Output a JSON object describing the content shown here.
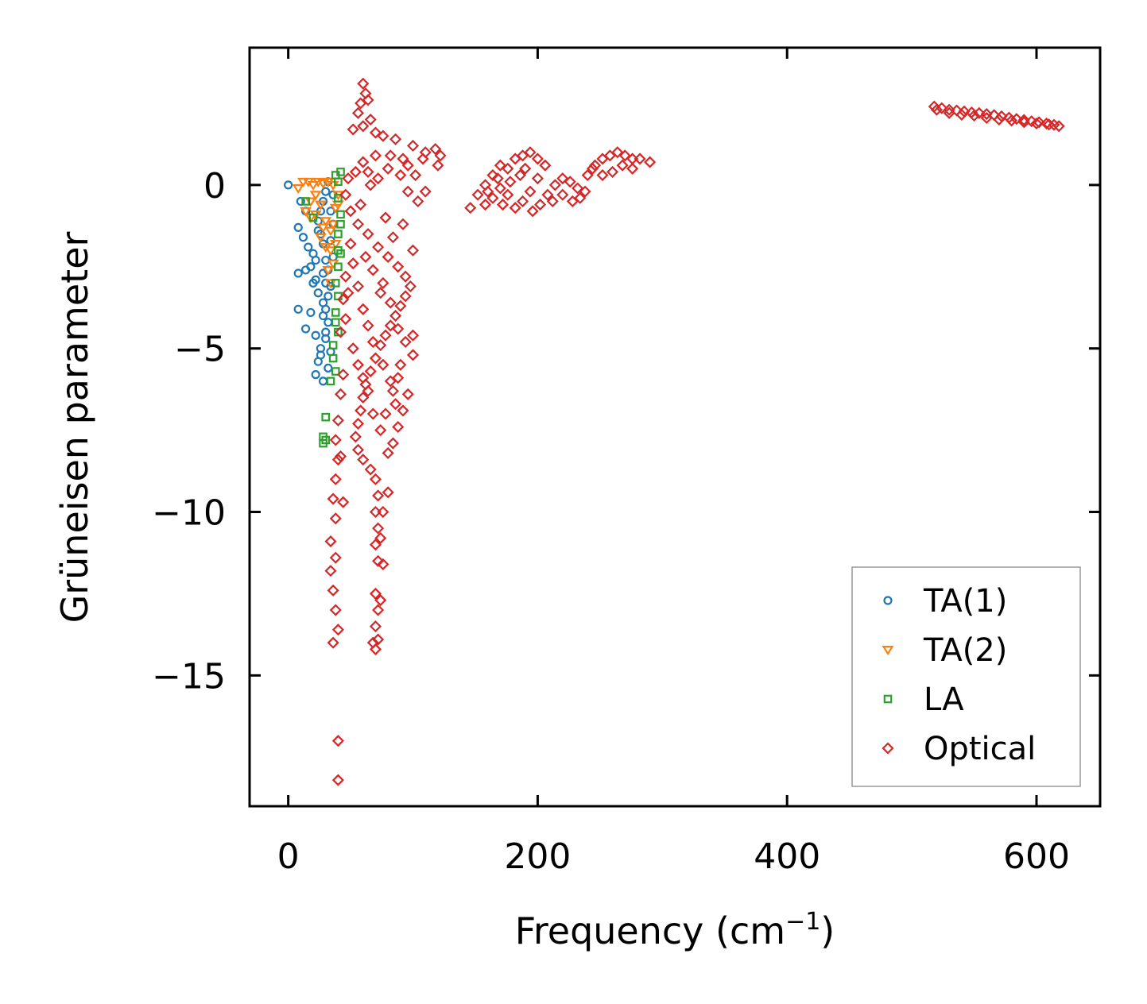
{
  "chart_data": {
    "type": "scatter",
    "title": "",
    "xlabel": "Frequency (cm",
    "xlabel_sup": "−1",
    "xlabel_close": ")",
    "ylabel": "Grüneisen parameter",
    "xlim": [
      -31,
      651
    ],
    "ylim": [
      -19.0,
      4.2
    ],
    "x_ticks": [
      0,
      200,
      400,
      600
    ],
    "y_ticks": [
      0,
      -5,
      -10,
      -15
    ],
    "x_tick_labels": [
      "0",
      "200",
      "400",
      "600"
    ],
    "y_tick_labels": [
      "0",
      "−5",
      "−10",
      "−15"
    ],
    "grid": false,
    "legend_position": "lower-right",
    "series": [
      {
        "name": "TA(1)",
        "marker": "circle",
        "color": "#1f77b4",
        "points": [
          [
            0,
            0.0
          ],
          [
            10,
            -0.5
          ],
          [
            14,
            -0.8
          ],
          [
            8,
            -1.3
          ],
          [
            12,
            -1.6
          ],
          [
            16,
            -1.9
          ],
          [
            20,
            -2.1
          ],
          [
            18,
            -2.5
          ],
          [
            8,
            -2.7
          ],
          [
            14,
            -2.6
          ],
          [
            22,
            -2.9
          ],
          [
            24,
            -3.3
          ],
          [
            28,
            -3.6
          ],
          [
            8,
            -3.8
          ],
          [
            18,
            -3.9
          ],
          [
            14,
            -4.4
          ],
          [
            22,
            -4.6
          ],
          [
            26,
            -5.0
          ],
          [
            24,
            -5.4
          ],
          [
            22,
            -5.8
          ],
          [
            28,
            -6.0
          ],
          [
            32,
            -5.6
          ],
          [
            34,
            -5.1
          ],
          [
            30,
            -4.7
          ],
          [
            32,
            -4.2
          ],
          [
            30,
            -3.8
          ],
          [
            34,
            -3.1
          ],
          [
            32,
            -2.6
          ],
          [
            36,
            -2.2
          ],
          [
            34,
            -1.7
          ],
          [
            36,
            -1.2
          ],
          [
            34,
            -0.8
          ],
          [
            36,
            -0.3
          ],
          [
            32,
            0.1
          ],
          [
            30,
            -0.2
          ],
          [
            28,
            -0.5
          ],
          [
            26,
            -0.8
          ],
          [
            24,
            -1.1
          ],
          [
            26,
            -1.5
          ],
          [
            28,
            -1.8
          ],
          [
            30,
            -2.3
          ],
          [
            28,
            -2.7
          ],
          [
            30,
            -3.0
          ],
          [
            32,
            -3.4
          ],
          [
            28,
            -4.0
          ],
          [
            30,
            -4.5
          ],
          [
            26,
            -5.2
          ],
          [
            20,
            -3.0
          ],
          [
            22,
            -2.3
          ],
          [
            24,
            -1.4
          ]
        ]
      },
      {
        "name": "TA(2)",
        "marker": "triangle-down",
        "color": "#ff7f0e",
        "points": [
          [
            8,
            -0.1
          ],
          [
            12,
            0.1
          ],
          [
            16,
            0.1
          ],
          [
            20,
            0.0
          ],
          [
            24,
            0.1
          ],
          [
            28,
            0.05
          ],
          [
            32,
            0.1
          ],
          [
            36,
            0.0
          ],
          [
            14,
            -0.8
          ],
          [
            18,
            -0.5
          ],
          [
            22,
            -0.9
          ],
          [
            26,
            -0.6
          ],
          [
            30,
            -1.1
          ],
          [
            34,
            -1.4
          ],
          [
            38,
            -0.7
          ],
          [
            26,
            -1.6
          ],
          [
            30,
            -1.9
          ],
          [
            34,
            -2.0
          ],
          [
            36,
            -1.2
          ],
          [
            40,
            -0.6
          ],
          [
            32,
            -2.6
          ],
          [
            34,
            -3.0
          ],
          [
            36,
            -2.4
          ],
          [
            38,
            -1.8
          ],
          [
            40,
            -0.3
          ],
          [
            28,
            -1.3
          ],
          [
            22,
            -0.3
          ],
          [
            18,
            -1.0
          ]
        ]
      },
      {
        "name": "LA",
        "marker": "square",
        "color": "#2ca02c",
        "points": [
          [
            14,
            -0.5
          ],
          [
            20,
            -1.0
          ],
          [
            38,
            0.3
          ],
          [
            40,
            0.1
          ],
          [
            42,
            0.4
          ],
          [
            40,
            -0.4
          ],
          [
            42,
            -0.9
          ],
          [
            40,
            -1.5
          ],
          [
            42,
            -2.1
          ],
          [
            40,
            -2.5
          ],
          [
            38,
            -3.0
          ],
          [
            40,
            -3.4
          ],
          [
            38,
            -3.9
          ],
          [
            40,
            -4.5
          ],
          [
            36,
            -4.9
          ],
          [
            38,
            -5.7
          ],
          [
            34,
            -6.0
          ],
          [
            30,
            -7.1
          ],
          [
            28,
            -7.7
          ],
          [
            30,
            -7.8
          ],
          [
            28,
            -7.9
          ],
          [
            42,
            -1.2
          ],
          [
            40,
            -2.0
          ],
          [
            38,
            -4.2
          ],
          [
            36,
            -5.3
          ]
        ]
      },
      {
        "name": "Optical",
        "marker": "diamond",
        "color": "#d62728",
        "points": [
          [
            60,
            3.1
          ],
          [
            62,
            2.8
          ],
          [
            58,
            2.5
          ],
          [
            64,
            2.6
          ],
          [
            56,
            2.2
          ],
          [
            66,
            2.0
          ],
          [
            60,
            1.8
          ],
          [
            52,
            1.7
          ],
          [
            70,
            1.6
          ],
          [
            76,
            1.5
          ],
          [
            86,
            1.4
          ],
          [
            100,
            1.2
          ],
          [
            110,
            1.0
          ],
          [
            118,
            1.1
          ],
          [
            122,
            0.9
          ],
          [
            108,
            0.8
          ],
          [
            96,
            0.6
          ],
          [
            90,
            0.3
          ],
          [
            80,
            0.5
          ],
          [
            72,
            0.2
          ],
          [
            66,
            0.0
          ],
          [
            60,
            0.7
          ],
          [
            54,
            0.4
          ],
          [
            48,
            0.2
          ],
          [
            46,
            -0.3
          ],
          [
            50,
            -0.8
          ],
          [
            56,
            -1.2
          ],
          [
            64,
            -1.5
          ],
          [
            72,
            -1.9
          ],
          [
            80,
            -2.2
          ],
          [
            88,
            -2.5
          ],
          [
            94,
            -2.8
          ],
          [
            98,
            -3.1
          ],
          [
            94,
            -3.4
          ],
          [
            90,
            -3.7
          ],
          [
            86,
            -4.0
          ],
          [
            82,
            -4.3
          ],
          [
            78,
            -4.6
          ],
          [
            74,
            -4.9
          ],
          [
            70,
            -5.3
          ],
          [
            66,
            -5.7
          ],
          [
            62,
            -6.1
          ],
          [
            60,
            -6.5
          ],
          [
            58,
            -6.9
          ],
          [
            56,
            -7.3
          ],
          [
            54,
            -7.7
          ],
          [
            56,
            -8.1
          ],
          [
            60,
            -8.4
          ],
          [
            66,
            -8.7
          ],
          [
            70,
            -9.0
          ],
          [
            72,
            -9.5
          ],
          [
            70,
            -10.0
          ],
          [
            72,
            -10.5
          ],
          [
            70,
            -11.0
          ],
          [
            72,
            -11.5
          ],
          [
            70,
            -12.5
          ],
          [
            72,
            -13.0
          ],
          [
            70,
            -13.5
          ],
          [
            72,
            -13.9
          ],
          [
            70,
            -14.2
          ],
          [
            68,
            -14.0
          ],
          [
            74,
            -12.7
          ],
          [
            46,
            -2.8
          ],
          [
            44,
            -3.5
          ],
          [
            42,
            -4.5
          ],
          [
            44,
            -5.8
          ],
          [
            42,
            -6.4
          ],
          [
            40,
            -7.2
          ],
          [
            38,
            -7.8
          ],
          [
            40,
            -8.4
          ],
          [
            38,
            -9.0
          ],
          [
            36,
            -9.6
          ],
          [
            38,
            -10.2
          ],
          [
            34,
            -10.9
          ],
          [
            38,
            -11.4
          ],
          [
            34,
            -11.8
          ],
          [
            36,
            -12.4
          ],
          [
            38,
            -13.0
          ],
          [
            40,
            -13.6
          ],
          [
            36,
            -14.0
          ],
          [
            44,
            -9.7
          ],
          [
            42,
            -8.3
          ],
          [
            40,
            -17.0
          ],
          [
            40,
            -18.2
          ],
          [
            96,
            -6.4
          ],
          [
            92,
            -6.9
          ],
          [
            88,
            -7.4
          ],
          [
            84,
            -7.9
          ],
          [
            80,
            -8.2
          ],
          [
            100,
            -5.2
          ],
          [
            100,
            -4.6
          ],
          [
            100,
            -2.0
          ],
          [
            104,
            -0.5
          ],
          [
            110,
            -0.2
          ],
          [
            120,
            0.6
          ],
          [
            50,
            -1.8
          ],
          [
            52,
            -2.4
          ],
          [
            56,
            -3.1
          ],
          [
            60,
            -3.8
          ],
          [
            64,
            -4.3
          ],
          [
            68,
            -4.8
          ],
          [
            76,
            -5.5
          ],
          [
            82,
            -6.0
          ],
          [
            86,
            -6.7
          ],
          [
            90,
            -5.5
          ],
          [
            94,
            -4.8
          ],
          [
            78,
            -1.0
          ],
          [
            84,
            -1.6
          ],
          [
            92,
            -1.2
          ],
          [
            96,
            -0.2
          ],
          [
            102,
            0.3
          ],
          [
            76,
            -3.0
          ],
          [
            82,
            -3.6
          ],
          [
            88,
            -4.4
          ],
          [
            68,
            -2.6
          ],
          [
            74,
            -3.3
          ],
          [
            62,
            -2.2
          ],
          [
            58,
            -0.6
          ],
          [
            64,
            0.4
          ],
          [
            70,
            0.9
          ],
          [
            82,
            0.9
          ],
          [
            92,
            0.8
          ],
          [
            52,
            -5.0
          ],
          [
            56,
            -5.5
          ],
          [
            60,
            -5.9
          ],
          [
            64,
            -6.3
          ],
          [
            68,
            -7.0
          ],
          [
            74,
            -7.5
          ],
          [
            78,
            -7.0
          ],
          [
            84,
            -6.3
          ],
          [
            88,
            -5.9
          ],
          [
            80,
            -9.4
          ],
          [
            76,
            -10.0
          ],
          [
            74,
            -10.8
          ],
          [
            76,
            -11.6
          ],
          [
            46,
            -4.1
          ],
          [
            48,
            -3.3
          ],
          [
            146,
            -0.7
          ],
          [
            152,
            -0.3
          ],
          [
            158,
            0.0
          ],
          [
            164,
            0.3
          ],
          [
            170,
            0.6
          ],
          [
            176,
            0.5
          ],
          [
            182,
            0.8
          ],
          [
            188,
            0.9
          ],
          [
            194,
            1.0
          ],
          [
            200,
            0.8
          ],
          [
            206,
            0.6
          ],
          [
            200,
            0.2
          ],
          [
            194,
            -0.2
          ],
          [
            188,
            -0.5
          ],
          [
            182,
            -0.7
          ],
          [
            176,
            -0.3
          ],
          [
            170,
            -0.1
          ],
          [
            164,
            -0.4
          ],
          [
            158,
            -0.6
          ],
          [
            196,
            -0.8
          ],
          [
            202,
            -0.6
          ],
          [
            208,
            -0.3
          ],
          [
            214,
            0.0
          ],
          [
            220,
            0.2
          ],
          [
            226,
            0.1
          ],
          [
            232,
            -0.1
          ],
          [
            238,
            -0.2
          ],
          [
            212,
            -0.5
          ],
          [
            220,
            -0.3
          ],
          [
            228,
            -0.5
          ],
          [
            234,
            -0.4
          ],
          [
            240,
            0.3
          ],
          [
            246,
            0.6
          ],
          [
            252,
            0.8
          ],
          [
            258,
            0.9
          ],
          [
            264,
            1.0
          ],
          [
            270,
            0.9
          ],
          [
            276,
            0.8
          ],
          [
            282,
            0.8
          ],
          [
            290,
            0.7
          ],
          [
            276,
            0.5
          ],
          [
            268,
            0.6
          ],
          [
            260,
            0.4
          ],
          [
            252,
            0.3
          ],
          [
            244,
            0.5
          ],
          [
            186,
            0.3
          ],
          [
            178,
            0.1
          ],
          [
            168,
            0.2
          ],
          [
            160,
            -0.2
          ],
          [
            172,
            -0.6
          ],
          [
            190,
            0.5
          ],
          [
            518,
            2.4
          ],
          [
            524,
            2.35
          ],
          [
            530,
            2.3
          ],
          [
            536,
            2.28
          ],
          [
            542,
            2.25
          ],
          [
            548,
            2.22
          ],
          [
            554,
            2.2
          ],
          [
            560,
            2.17
          ],
          [
            566,
            2.14
          ],
          [
            572,
            2.1
          ],
          [
            578,
            2.06
          ],
          [
            584,
            2.02
          ],
          [
            590,
            1.99
          ],
          [
            596,
            1.95
          ],
          [
            602,
            1.92
          ],
          [
            608,
            1.88
          ],
          [
            614,
            1.84
          ],
          [
            618,
            1.8
          ],
          [
            520,
            2.3
          ],
          [
            530,
            2.2
          ],
          [
            540,
            2.15
          ],
          [
            550,
            2.12
          ],
          [
            560,
            2.05
          ],
          [
            570,
            2.0
          ],
          [
            580,
            1.97
          ],
          [
            590,
            1.92
          ],
          [
            600,
            1.88
          ],
          [
            610,
            1.85
          ]
        ]
      }
    ]
  }
}
